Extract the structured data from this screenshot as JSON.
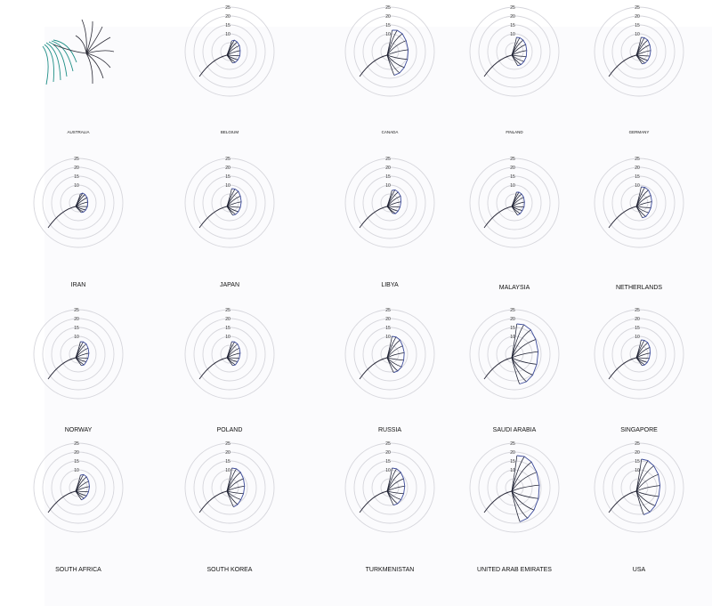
{
  "chart_data": {
    "type": "radial-small-multiples",
    "rings": [
      5,
      10,
      15,
      20,
      25
    ],
    "ticks": [
      "10",
      "15",
      "20",
      "25"
    ],
    "colors": {
      "spoke": "#1f2233",
      "rim": "#3b4a9a",
      "ring": "#d6d6dc",
      "legend_accent": "#1f8f86"
    },
    "countries": [
      {
        "name": "AUSTRALIA",
        "values": []
      },
      {
        "name": "BELGIUM",
        "values": [
          6,
          7,
          7.5,
          8,
          8,
          8,
          7.5,
          7,
          6.5
        ]
      },
      {
        "name": "CANADA",
        "values": [
          12,
          13,
          14,
          14.5,
          15,
          15,
          14.5,
          14,
          13.5
        ]
      },
      {
        "name": "FINLAND",
        "values": [
          8,
          8.5,
          9,
          9.5,
          9.5,
          9.5,
          9,
          8.5,
          8
        ]
      },
      {
        "name": "GERMANY",
        "values": [
          8,
          8.5,
          9,
          9,
          9,
          8.5,
          8,
          7.5,
          7
        ]
      },
      {
        "name": "IRAN",
        "values": [
          5,
          6,
          6.5,
          7,
          7,
          7,
          6.5,
          6,
          5.5
        ]
      },
      {
        "name": "JAPAN",
        "values": [
          8,
          8.5,
          9,
          9,
          9,
          8.5,
          8,
          7.5,
          7
        ]
      },
      {
        "name": "LIBYA",
        "values": [
          7,
          8,
          8.5,
          9,
          8.5,
          8,
          7.5,
          7,
          6
        ]
      },
      {
        "name": "MALAYSIA",
        "values": [
          6,
          6.5,
          7,
          7.5,
          7.5,
          7.5,
          7,
          7,
          7
        ]
      },
      {
        "name": "NETHERLANDS",
        "values": [
          9,
          9.5,
          10,
          10,
          10,
          9.5,
          9,
          9,
          8.5
        ]
      },
      {
        "name": "NORWAY",
        "values": [
          7,
          7.5,
          8,
          8,
          8,
          7.5,
          7,
          7,
          6.5
        ]
      },
      {
        "name": "POLAND",
        "values": [
          7,
          7.5,
          8,
          8,
          8,
          7.5,
          7,
          7,
          6.5
        ]
      },
      {
        "name": "RUSSIA",
        "values": [
          10,
          10.5,
          11,
          11,
          11.5,
          11.5,
          11.5,
          11,
          10.5
        ]
      },
      {
        "name": "SAUDI ARABIA",
        "values": [
          17,
          18,
          19,
          19.5,
          20,
          19.5,
          19,
          18,
          17
        ]
      },
      {
        "name": "SINGAPORE",
        "values": [
          8,
          8.5,
          9,
          9,
          8.5,
          8,
          7.5,
          7,
          6.5
        ]
      },
      {
        "name": "SOUTH AFRICA",
        "values": [
          7,
          8,
          8.5,
          8.5,
          8.5,
          8,
          7.5,
          7,
          7
        ]
      },
      {
        "name": "SOUTH KOREA",
        "values": [
          11,
          11.5,
          12,
          12,
          12,
          11.5,
          11,
          11,
          11
        ]
      },
      {
        "name": "TURKMENISTAN",
        "values": [
          11,
          11.5,
          12,
          12,
          12,
          11.5,
          11,
          10.5,
          10
        ]
      },
      {
        "name": "UNITED ARAB EMIRATES",
        "values": [
          18,
          19,
          20,
          20.5,
          21,
          21,
          20.5,
          20,
          19.5
        ]
      },
      {
        "name": "USA",
        "values": [
          16,
          16.5,
          17,
          17.5,
          17.5,
          17,
          16.5,
          16,
          15.5
        ]
      }
    ]
  }
}
